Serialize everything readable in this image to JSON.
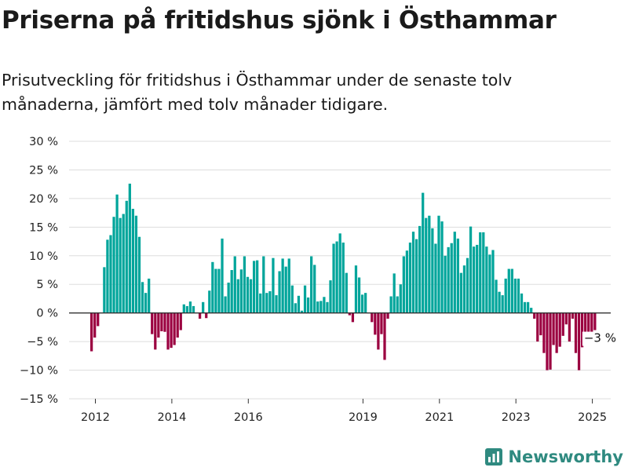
{
  "title": "Priserna på fritidshus sjönk i Östhammar",
  "subtitle": "Prisutveckling för fritidshus i Östhammar under de senaste tolv månaderna, jämfört med tolv månader tidigare.",
  "brand": "Newsworthy",
  "chart_data": {
    "type": "bar",
    "start_year": 2011.9,
    "months_per_year": 12,
    "ylim": [
      -15,
      30
    ],
    "yticks": [
      -15,
      -10,
      -5,
      0,
      5,
      10,
      15,
      20,
      25,
      30
    ],
    "ytick_labels": [
      "−15 %",
      "−10 %",
      "−5 %",
      "0 %",
      "5 %",
      "10 %",
      "15 %",
      "20 %",
      "25 %",
      "30 %"
    ],
    "xticks": [
      2012,
      2014,
      2016,
      2019,
      2021,
      2023,
      2025
    ],
    "xtick_labels": [
      "2012",
      "2014",
      "2016",
      "2019",
      "2021",
      "2023",
      "2025"
    ],
    "grid": true,
    "positive_color": "#00a59b",
    "negative_color": "#9b0040",
    "values": [
      -6.7,
      -4.3,
      -2.3,
      0,
      8.0,
      12.8,
      13.6,
      16.8,
      20.7,
      16.6,
      17.3,
      19.6,
      22.6,
      18.2,
      17.0,
      13.3,
      5.4,
      3.5,
      6.0,
      -3.7,
      -6.4,
      -4.3,
      -3.2,
      -3.3,
      -6.4,
      -6.1,
      -5.6,
      -4.3,
      -3.0,
      1.5,
      1.2,
      2.0,
      1.2,
      0,
      -1.0,
      1.9,
      -0.9,
      3.9,
      8.9,
      7.7,
      7.7,
      13.0,
      2.9,
      5.3,
      7.5,
      9.9,
      5.9,
      7.6,
      9.9,
      6.3,
      5.9,
      9.1,
      9.2,
      3.4,
      9.9,
      3.5,
      3.8,
      9.6,
      3.1,
      7.3,
      9.5,
      8.1,
      9.5,
      4.8,
      1.7,
      3.0,
      0.4,
      4.8,
      2.7,
      9.9,
      8.4,
      2.0,
      2.1,
      2.8,
      1.9,
      5.7,
      12.1,
      12.5,
      13.9,
      12.3,
      7.0,
      -0.4,
      -1.6,
      8.3,
      6.2,
      3.2,
      3.5,
      0,
      -1.6,
      -3.8,
      -6.4,
      -3.7,
      -8.2,
      -1.0,
      2.9,
      6.9,
      2.9,
      5.0,
      9.9,
      10.9,
      12.3,
      14.2,
      12.9,
      15.2,
      21.0,
      16.6,
      17.0,
      14.8,
      12.1,
      17.0,
      16.0,
      10.0,
      11.5,
      12.2,
      14.2,
      13.0,
      7.0,
      8.3,
      9.6,
      15.1,
      11.6,
      11.9,
      14.1,
      14.1,
      11.6,
      10.2,
      11.0,
      5.8,
      3.7,
      3.1,
      6.0,
      7.7,
      7.7,
      6.0,
      6.0,
      3.4,
      1.9,
      1.9,
      0.9,
      -1.0,
      -5.0,
      -3.9,
      -7.0,
      -10.0,
      -9.9,
      -5.6,
      -7.0,
      -5.9,
      -4.0,
      -2.0,
      -5.0,
      -1.0,
      -7.0,
      -10.0,
      -6.0,
      -5.4,
      -4.6,
      -3.9,
      -3.0
    ],
    "annotation": "−3 %"
  }
}
